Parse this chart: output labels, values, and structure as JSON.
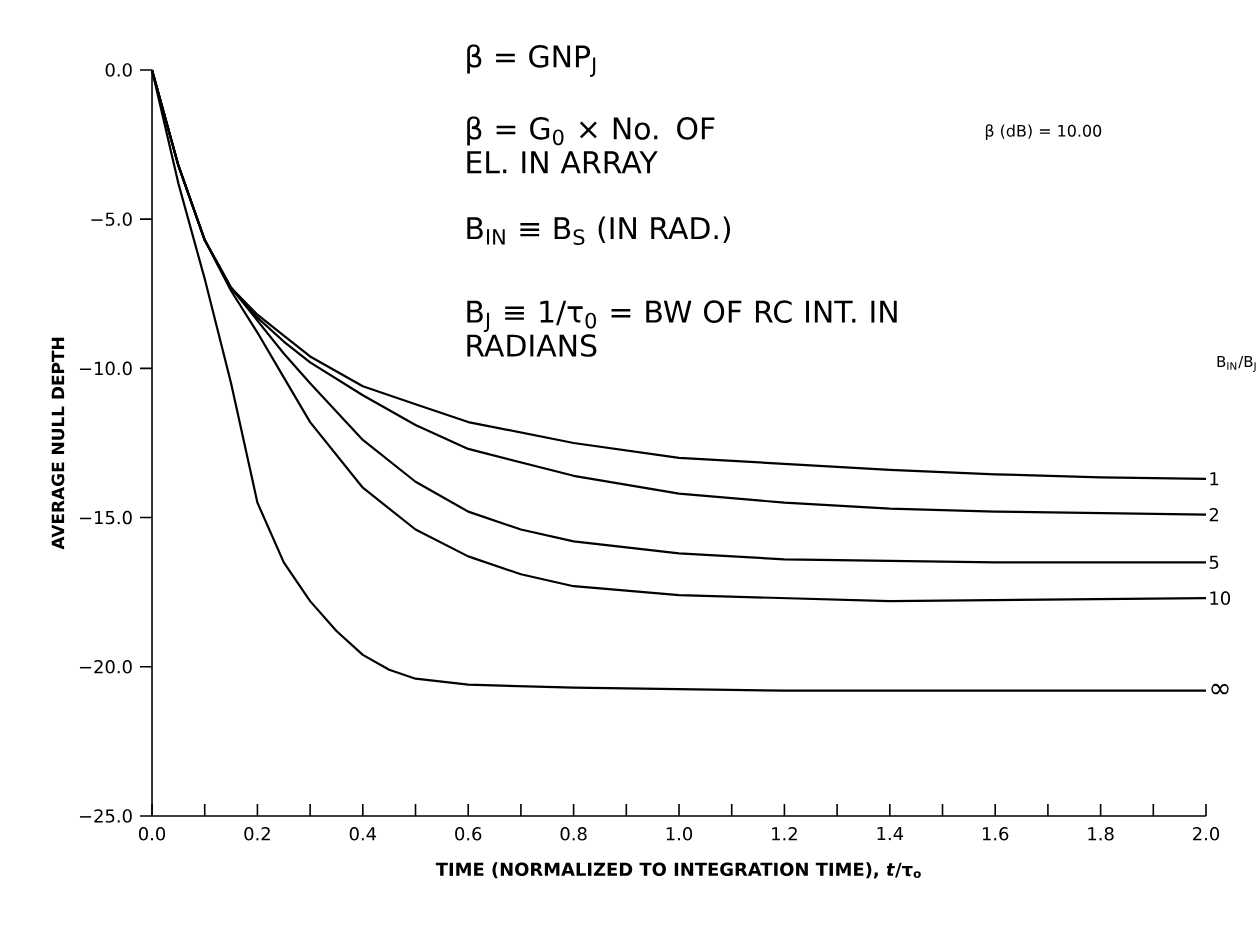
{
  "chart_data": {
    "type": "line",
    "xlabel": "TIME (NORMALIZED TO INTEGRATION TIME), *t*/τ$_{o}$",
    "ylabel": "AVERAGE NULL DEPTH",
    "legend_title": "B$_{IN}$/B$_{J}$",
    "annotations": [
      "β = GNP$_{J}$",
      "β = G$_{0}$ × No. OF EL. IN ARRAY",
      "B$_{IN}$ ≡ B$_{S}$ (IN RAD.)",
      "B$_{J}$ ≡ 1/τ$_{0}$ = BW OF RC INT. IN RADIANS",
      "β (dB) = 10.00"
    ],
    "xlim": [
      0,
      2
    ],
    "ylim": [
      -25,
      0
    ],
    "xticks": [
      {
        "value": 0,
        "label": "0.0"
      },
      {
        "value": 0.1,
        "label": null
      },
      {
        "value": 0.2,
        "label": "0.2"
      },
      {
        "value": 0.3,
        "label": null
      },
      {
        "value": 0.4,
        "label": "0.4"
      },
      {
        "value": 0.5,
        "label": null
      },
      {
        "value": 0.6,
        "label": "0.6"
      },
      {
        "value": 0.7,
        "label": null
      },
      {
        "value": 0.8,
        "label": "0.8"
      },
      {
        "value": 0.9,
        "label": null
      },
      {
        "value": 1.0,
        "label": "1.0"
      },
      {
        "value": 1.1,
        "label": null
      },
      {
        "value": 1.2,
        "label": "1.2"
      },
      {
        "value": 1.3,
        "label": null
      },
      {
        "value": 1.4,
        "label": "1.4"
      },
      {
        "value": 1.5,
        "label": null
      },
      {
        "value": 1.6,
        "label": "1.6"
      },
      {
        "value": 1.7,
        "label": null
      },
      {
        "value": 1.8,
        "label": "1.8"
      },
      {
        "value": 1.9,
        "label": null
      },
      {
        "value": 2.0,
        "label": "2.0"
      }
    ],
    "yticks": [
      {
        "value": 0,
        "label": "0.0"
      },
      {
        "value": -5,
        "label": "−5.0"
      },
      {
        "value": -10,
        "label": "−10.0"
      },
      {
        "value": -15,
        "label": "−15.0"
      },
      {
        "value": -20,
        "label": "−20.0"
      },
      {
        "value": -25,
        "label": "−25.0"
      }
    ],
    "series": [
      {
        "name": "1",
        "color": "#000000",
        "x": [
          0,
          0.05,
          0.1,
          0.15,
          0.2,
          0.25,
          0.3,
          0.4,
          0.5,
          0.6,
          0.8,
          1.0,
          1.2,
          1.4,
          1.6,
          1.8,
          2.0
        ],
        "values": [
          0,
          -3.2,
          -5.7,
          -7.3,
          -8.2,
          -8.9,
          -9.6,
          -10.6,
          -11.2,
          -11.8,
          -12.5,
          -13.0,
          -13.2,
          -13.4,
          -13.55,
          -13.65,
          -13.7
        ]
      },
      {
        "name": "2",
        "color": "#000000",
        "x": [
          0,
          0.05,
          0.1,
          0.15,
          0.2,
          0.25,
          0.3,
          0.4,
          0.5,
          0.6,
          0.8,
          1.0,
          1.2,
          1.4,
          1.6,
          2.0
        ],
        "values": [
          0,
          -3.2,
          -5.7,
          -7.3,
          -8.3,
          -9.1,
          -9.8,
          -10.9,
          -11.9,
          -12.7,
          -13.6,
          -14.2,
          -14.5,
          -14.7,
          -14.8,
          -14.9
        ]
      },
      {
        "name": "5",
        "color": "#000000",
        "x": [
          0,
          0.05,
          0.1,
          0.15,
          0.2,
          0.25,
          0.3,
          0.4,
          0.5,
          0.6,
          0.7,
          0.8,
          1.0,
          1.2,
          1.6,
          2.0
        ],
        "values": [
          0,
          -3.2,
          -5.7,
          -7.3,
          -8.4,
          -9.5,
          -10.5,
          -12.4,
          -13.8,
          -14.8,
          -15.4,
          -15.8,
          -16.2,
          -16.4,
          -16.5,
          -16.5
        ]
      },
      {
        "name": "10",
        "color": "#000000",
        "x": [
          0,
          0.05,
          0.1,
          0.15,
          0.2,
          0.25,
          0.3,
          0.4,
          0.5,
          0.6,
          0.7,
          0.8,
          1.0,
          1.4,
          2.0
        ],
        "values": [
          0,
          -3.2,
          -5.7,
          -7.4,
          -8.8,
          -10.3,
          -11.8,
          -14.0,
          -15.4,
          -16.3,
          -16.9,
          -17.3,
          -17.6,
          -17.8,
          -17.7
        ]
      },
      {
        "name": "∞",
        "color": "#000000",
        "x": [
          0,
          0.05,
          0.1,
          0.15,
          0.2,
          0.25,
          0.3,
          0.35,
          0.4,
          0.45,
          0.5,
          0.6,
          0.8,
          1.2,
          2.0
        ],
        "values": [
          0,
          -3.8,
          -7.0,
          -10.5,
          -14.5,
          -16.5,
          -17.8,
          -18.8,
          -19.6,
          -20.1,
          -20.4,
          -20.6,
          -20.7,
          -20.8,
          -20.8
        ]
      }
    ]
  }
}
